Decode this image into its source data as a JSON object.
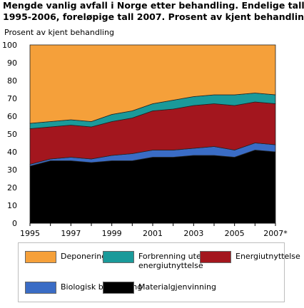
{
  "title": {
    "line1": "Mengde vanlig avfall i Norge etter behandling. Endelige tall",
    "line2": "1995-2006, foreløpige tall 2007. Prosent av kjent behandling"
  },
  "chart_data": {
    "type": "area",
    "stacked": true,
    "title": "Mengde vanlig avfall i Norge etter behandling. Endelige tall 1995-2006, foreløpige tall 2007. Prosent av kjent behandling",
    "ylabel": "Prosent av kjent behandling",
    "xlabel": "",
    "ylim": [
      0,
      100
    ],
    "yticks": [
      0,
      10,
      20,
      30,
      40,
      50,
      60,
      70,
      80,
      90,
      100
    ],
    "x": [
      1995,
      1996,
      1997,
      1998,
      1999,
      2000,
      2001,
      2002,
      2003,
      2004,
      2005,
      2006,
      2007
    ],
    "x_tick_labels": [
      "1995",
      "",
      "1997",
      "",
      "1999",
      "",
      "2001",
      "",
      "2003",
      "",
      "2005",
      "",
      "2007*"
    ],
    "grid": true,
    "legend_position": "bottom",
    "series": [
      {
        "name": "Materialgjenvinning",
        "color": "#000000",
        "values": [
          32,
          35,
          35,
          34,
          35,
          35,
          37,
          37,
          38,
          38,
          37,
          41,
          40
        ]
      },
      {
        "name": "Biologisk behandling",
        "color": "#3a6cc5",
        "values": [
          1,
          1,
          2,
          2,
          3,
          4,
          4,
          4,
          4,
          5,
          4,
          4,
          4
        ]
      },
      {
        "name": "Energiutnyttelse",
        "color": "#a3161e",
        "values": [
          20,
          18,
          18,
          18,
          19,
          20,
          22,
          23,
          24,
          24,
          25,
          23,
          23
        ]
      },
      {
        "name": "Forbrenning uten energiutnyttelse",
        "color": "#1a9a9a",
        "values": [
          3,
          3,
          3,
          3,
          4,
          4,
          4,
          5,
          5,
          5,
          6,
          5,
          5
        ]
      },
      {
        "name": "Deponering",
        "color": "#f5a03a",
        "values": [
          44,
          43,
          42,
          43,
          39,
          37,
          33,
          31,
          29,
          28,
          28,
          27,
          28
        ]
      }
    ]
  },
  "legend": {
    "items": [
      {
        "label_lines": [
          "Deponering"
        ],
        "color": "#f5a03a"
      },
      {
        "label_lines": [
          "Forbrenning uten",
          "energiutnyttelse"
        ],
        "color": "#1a9a9a"
      },
      {
        "label_lines": [
          "Energiutnyttelse"
        ],
        "color": "#a3161e"
      },
      {
        "label_lines": [
          "Biologisk behandling"
        ],
        "color": "#3a6cc5"
      },
      {
        "label_lines": [
          "Materialgjenvinning"
        ],
        "color": "#000000"
      }
    ]
  }
}
